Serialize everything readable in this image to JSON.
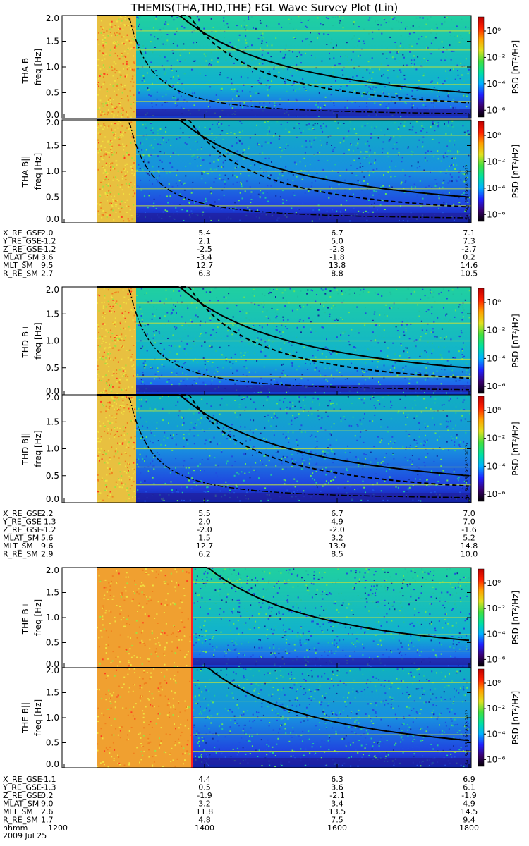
{
  "title": "THEMIS(THA,THD,THE) FGL Wave Survey Plot (Lin)",
  "colorbar": {
    "label": "PSD [nT²/Hz]",
    "ticks": [
      "10⁰",
      "10⁻²",
      "10⁻⁴",
      "10⁻⁶"
    ],
    "tick_values": [
      1,
      0.01,
      0.0001,
      1e-06
    ],
    "colors": [
      "#000000",
      "#3a0070",
      "#2020ff",
      "#00b0ff",
      "#00e0a0",
      "#40e040",
      "#e0e020",
      "#ffa000",
      "#ff2000",
      "#c00000"
    ]
  },
  "stamp": "Sat Sep 15 19:18:32 2012",
  "xaxis": {
    "label": "hhmm",
    "ticks": [
      "1200",
      "1400",
      "1600",
      "1800"
    ],
    "date": "2009 Jul 25"
  },
  "ephem_labels": [
    "X_RE_GSE",
    "Y_RE_GSE",
    "Z_RE_GSE",
    "MLAT_SM",
    "MLT_SM",
    "R_RE_SM"
  ],
  "freq_tick_labels": [
    "2.0",
    "1.5",
    "1.0",
    "0.5",
    "0.0"
  ],
  "freq_axis_label": "freq [Hz]",
  "chart_data": {
    "type": "heatmap",
    "x_unit": "hhmm",
    "y_unit": "Hz",
    "ylim": [
      0,
      2.0
    ],
    "xlim": [
      "1200",
      "1800"
    ],
    "probes": [
      {
        "id": "THA",
        "panels": [
          {
            "label": "THA B⊥",
            "ytitle": "THA B⊥"
          },
          {
            "label": "THA B||",
            "ytitle": "THA B||"
          }
        ],
        "ephem": [
          [
            "2.0",
            "5.4",
            "6.7",
            "7.1"
          ],
          [
            "-1.2",
            "2.1",
            "5.0",
            "7.3"
          ],
          [
            "-1.2",
            "-2.5",
            "-2.8",
            "-2.7"
          ],
          [
            "3.6",
            "-3.4",
            "-1.8",
            "0.2"
          ],
          [
            "9.5",
            "12.7",
            "13.8",
            "14.6"
          ],
          [
            "2.7",
            "6.3",
            "8.8",
            "10.5"
          ]
        ]
      },
      {
        "id": "THD",
        "panels": [
          {
            "label": "THD B⊥",
            "ytitle": "THD B⊥"
          },
          {
            "label": "THD B||",
            "ytitle": "THD B||"
          }
        ],
        "ephem": [
          [
            "2.2",
            "5.5",
            "6.7",
            "7.0"
          ],
          [
            "-1.3",
            "2.0",
            "4.9",
            "7.0"
          ],
          [
            "-1.2",
            "-2.0",
            "-2.0",
            "-1.6"
          ],
          [
            "5.6",
            "1.5",
            "3.2",
            "5.2"
          ],
          [
            "9.6",
            "12.7",
            "13.9",
            "14.8"
          ],
          [
            "2.9",
            "6.2",
            "8.5",
            "10.0"
          ]
        ]
      },
      {
        "id": "THE",
        "panels": [
          {
            "label": "THE B⊥",
            "ytitle": "THE B⊥"
          },
          {
            "label": "THE B||",
            "ytitle": "THE B||"
          }
        ],
        "ephem": [
          [
            "-1.1",
            "4.4",
            "6.3",
            "6.9"
          ],
          [
            "-1.3",
            "0.5",
            "3.6",
            "6.1"
          ],
          [
            "0.2",
            "-1.9",
            "-2.1",
            "-1.9"
          ],
          [
            "9.0",
            "3.2",
            "3.4",
            "4.9"
          ],
          [
            "2.6",
            "11.8",
            "13.5",
            "14.5"
          ],
          [
            "1.7",
            "4.8",
            "7.5",
            "9.4"
          ]
        ]
      }
    ]
  }
}
